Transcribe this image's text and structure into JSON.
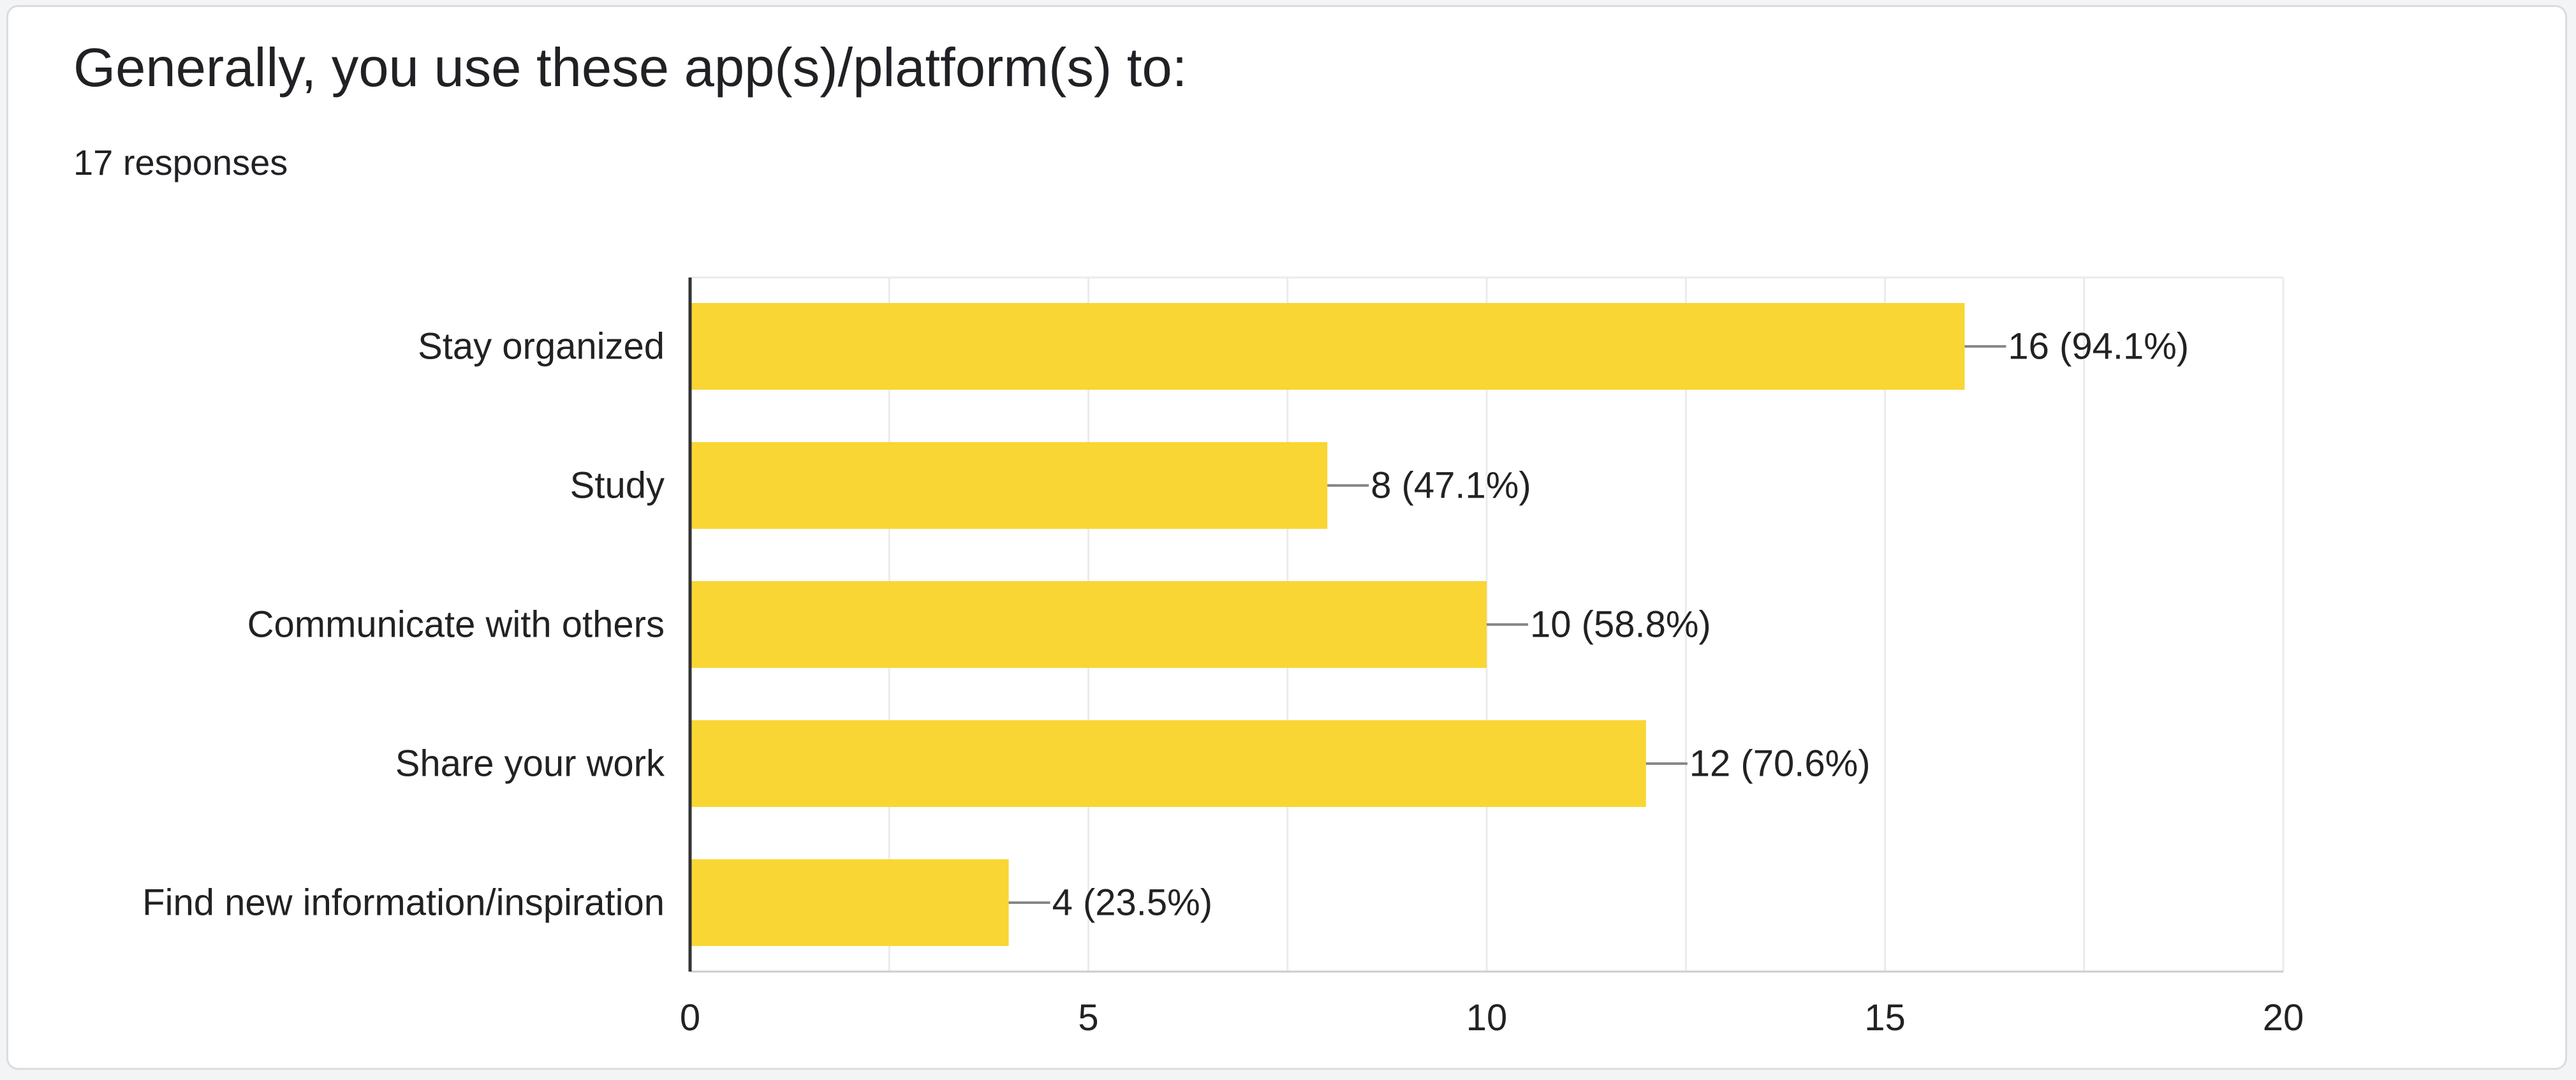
{
  "header": {
    "title": "Generally, you use these app(s)/platform(s) to:",
    "responses": "17 responses"
  },
  "colors": {
    "bar": "#f9d633",
    "grid": "#ebebeb",
    "axis": "#333333",
    "leader": "#888888"
  },
  "chart_data": {
    "type": "bar",
    "orientation": "horizontal",
    "categories": [
      "Stay organized",
      "Study",
      "Communicate with others",
      "Share your work",
      "Find new information/inspiration"
    ],
    "values": [
      16,
      8,
      10,
      12,
      4
    ],
    "data_labels": [
      "16 (94.1%)",
      "8 (47.1%)",
      "10 (58.8%)",
      "12 (70.6%)",
      "4 (23.5%)"
    ],
    "xlim": [
      0,
      20
    ],
    "xticks": [
      0,
      5,
      10,
      15,
      20
    ],
    "grid": true,
    "title": "Generally, you use these app(s)/platform(s) to:",
    "xlabel": "",
    "ylabel": ""
  }
}
